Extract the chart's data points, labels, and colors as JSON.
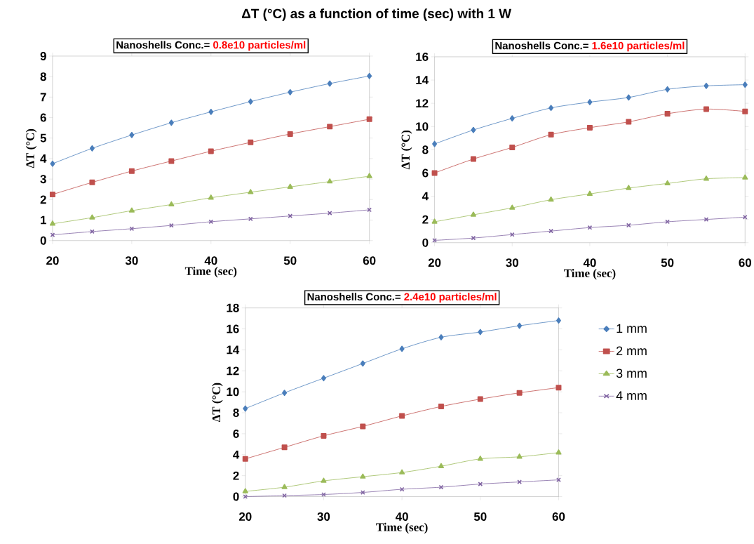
{
  "chart_data": [
    {
      "type": "line",
      "title": "Nanoshells Conc.=",
      "subtitle": "0.8e10 particles/ml",
      "annotations": [
        "ΔT (°C) as a function of time (sec) with 1 W"
      ],
      "xlabel": "Time (sec)",
      "ylabel": "ΔT (°C)",
      "x": [
        20,
        25,
        30,
        35,
        40,
        45,
        50,
        55,
        60
      ],
      "xlim": [
        20,
        60
      ],
      "xticks": [
        20,
        30,
        40,
        50,
        60
      ],
      "ylim": [
        0,
        9
      ],
      "yticks": [
        0,
        1,
        2,
        3,
        4,
        5,
        6,
        7,
        8,
        9
      ],
      "grid": false,
      "legend": false,
      "series": [
        {
          "color": "#4a7ebb",
          "marker": "diamond",
          "values": [
            3.75,
            4.5,
            5.15,
            5.75,
            6.28,
            6.78,
            7.24,
            7.66,
            8.03
          ]
        },
        {
          "color": "#c0504d",
          "marker": "square",
          "values": [
            2.25,
            2.84,
            3.39,
            3.88,
            4.36,
            4.79,
            5.2,
            5.56,
            5.92
          ]
        },
        {
          "color": "#9bbb59",
          "marker": "triangle",
          "values": [
            0.82,
            1.12,
            1.46,
            1.76,
            2.09,
            2.36,
            2.62,
            2.88,
            3.14
          ]
        },
        {
          "color": "#8064a2",
          "marker": "cross",
          "values": [
            0.28,
            0.44,
            0.58,
            0.74,
            0.92,
            1.06,
            1.2,
            1.34,
            1.5
          ]
        }
      ]
    },
    {
      "type": "line",
      "title": "Nanoshells Conc.=",
      "subtitle": "1.6e10 particles/ml",
      "xlabel": "Time (sec)",
      "ylabel": "ΔT (°C)",
      "x": [
        20,
        25,
        30,
        35,
        40,
        45,
        50,
        55,
        60
      ],
      "xlim": [
        20,
        60
      ],
      "xticks": [
        20,
        30,
        40,
        50,
        60
      ],
      "ylim": [
        0,
        16
      ],
      "yticks": [
        0,
        2,
        4,
        6,
        8,
        10,
        12,
        14,
        16
      ],
      "grid": false,
      "legend": false,
      "series": [
        {
          "color": "#4a7ebb",
          "marker": "diamond",
          "values": [
            8.5,
            9.7,
            10.7,
            11.6,
            12.1,
            12.5,
            13.2,
            13.5,
            13.6
          ]
        },
        {
          "color": "#c0504d",
          "marker": "square",
          "values": [
            6.0,
            7.2,
            8.2,
            9.3,
            9.9,
            10.4,
            11.1,
            11.5,
            11.3
          ]
        },
        {
          "color": "#9bbb59",
          "marker": "triangle",
          "values": [
            1.8,
            2.4,
            3.0,
            3.7,
            4.2,
            4.7,
            5.1,
            5.5,
            5.6
          ]
        },
        {
          "color": "#8064a2",
          "marker": "cross",
          "values": [
            0.2,
            0.4,
            0.7,
            1.0,
            1.3,
            1.5,
            1.8,
            2.0,
            2.2
          ]
        }
      ]
    },
    {
      "type": "line",
      "title": "Nanoshells Conc.=",
      "subtitle": "2.4e10 particles/ml",
      "xlabel": "Time (sec)",
      "ylabel": "ΔT (°C)",
      "x": [
        20,
        25,
        30,
        35,
        40,
        45,
        50,
        55,
        60
      ],
      "xlim": [
        20,
        60
      ],
      "xticks": [
        20,
        30,
        40,
        50,
        60
      ],
      "ylim": [
        0,
        18
      ],
      "yticks": [
        0,
        2,
        4,
        6,
        8,
        10,
        12,
        14,
        16,
        18
      ],
      "grid": false,
      "legend": "right",
      "series": [
        {
          "name": "1 mm",
          "color": "#4a7ebb",
          "marker": "diamond",
          "values": [
            8.4,
            9.9,
            11.3,
            12.7,
            14.1,
            15.2,
            15.7,
            16.3,
            16.8
          ]
        },
        {
          "name": "2 mm",
          "color": "#c0504d",
          "marker": "square",
          "values": [
            3.6,
            4.7,
            5.8,
            6.7,
            7.7,
            8.6,
            9.3,
            9.9,
            10.4
          ]
        },
        {
          "name": "3 mm",
          "color": "#9bbb59",
          "marker": "triangle",
          "values": [
            0.5,
            0.9,
            1.5,
            1.9,
            2.3,
            2.9,
            3.6,
            3.8,
            4.2
          ]
        },
        {
          "name": "4 mm",
          "color": "#8064a2",
          "marker": "cross",
          "values": [
            0.0,
            0.1,
            0.2,
            0.4,
            0.7,
            0.9,
            1.2,
            1.4,
            1.6
          ]
        }
      ]
    }
  ]
}
